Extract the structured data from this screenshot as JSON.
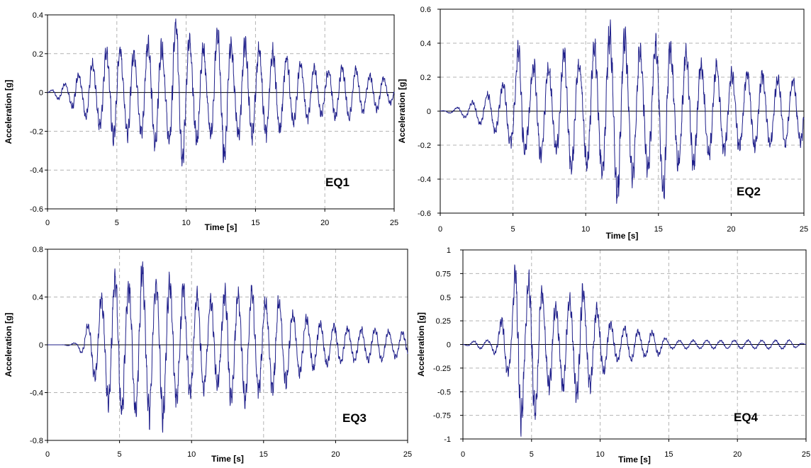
{
  "colors": {
    "trace": "#1f1f8a",
    "grid": "#b3b3b3",
    "axis": "#000000",
    "zero_line": "#000000"
  },
  "chart_data": [
    {
      "type": "line",
      "label": "EQ1",
      "xlabel": "Time [s]",
      "ylabel": "Acceleration [g]",
      "xlim": [
        0,
        25
      ],
      "ylim": [
        -0.6,
        0.4
      ],
      "xticks": [
        0,
        5,
        10,
        15,
        20,
        25
      ],
      "xtick_labels": [
        "0",
        "5",
        "10",
        "15",
        "20",
        "25"
      ],
      "yticks": [
        -0.6,
        -0.4,
        -0.2,
        0,
        0.2,
        0.4
      ],
      "ytick_labels": [
        "-0.6",
        "-0.4",
        "-0.2",
        "0",
        "0.2",
        "0.4"
      ],
      "grid": true,
      "series": [
        {
          "x": [
            0,
            1,
            1.5,
            2,
            2.5,
            3,
            3.5,
            4,
            4.5,
            5,
            5.5,
            6,
            6.5,
            7,
            7.5,
            8,
            8.5,
            9,
            9.5,
            10,
            10.5,
            11,
            11.5,
            12,
            12.5,
            13,
            13.5,
            14,
            15,
            16,
            17,
            18,
            19,
            20,
            21,
            22,
            23,
            24,
            25
          ],
          "y": [
            0,
            0.05,
            -0.05,
            0.12,
            -0.1,
            0.18,
            -0.15,
            0.25,
            -0.25,
            0.3,
            -0.2,
            0.28,
            -0.18,
            0.3,
            -0.3,
            0.32,
            -0.22,
            0.36,
            -0.42,
            0.35,
            -0.25,
            0.33,
            -0.2,
            0.32,
            -0.38,
            0.37,
            -0.2,
            0.3,
            -0.25,
            0.25,
            -0.22,
            0.18,
            -0.15,
            0.12,
            -0.15,
            0.15,
            -0.1,
            0.1,
            0.05
          ]
        }
      ]
    },
    {
      "type": "line",
      "label": "EQ2",
      "xlabel": "Time [s]",
      "ylabel": "Acceleration [g]",
      "xlim": [
        0,
        25
      ],
      "ylim": [
        -0.6,
        0.6
      ],
      "xticks": [
        0,
        5,
        10,
        15,
        20,
        25
      ],
      "xtick_labels": [
        "0",
        "5",
        "10",
        "15",
        "20",
        "25"
      ],
      "yticks": [
        -0.6,
        -0.4,
        -0.2,
        0,
        0.2,
        0.4,
        0.6
      ],
      "ytick_labels": [
        "-0.6",
        "-0.4",
        "-0.2",
        "0",
        "0.2",
        "0.4",
        "0.6"
      ],
      "grid": true,
      "series": [
        {
          "x": [
            0,
            1,
            2,
            3,
            4,
            4.5,
            5,
            5.5,
            6,
            6.5,
            7,
            7.5,
            8,
            8.5,
            9,
            9.5,
            10,
            10.5,
            11,
            11.5,
            12,
            12.5,
            13,
            13.5,
            14,
            14.5,
            15,
            15.5,
            16,
            17,
            18,
            19,
            20,
            21,
            22,
            23,
            24,
            25
          ],
          "y": [
            0,
            0.02,
            -0.05,
            -0.1,
            0.15,
            -0.2,
            0.22,
            -0.48,
            0.2,
            -0.35,
            0.3,
            -0.3,
            0.25,
            -0.4,
            0.4,
            -0.3,
            0.35,
            -0.45,
            0.38,
            -0.5,
            0.59,
            -0.55,
            0.42,
            -0.45,
            0.38,
            -0.42,
            0.48,
            -0.58,
            0.35,
            -0.4,
            0.3,
            -0.3,
            0.25,
            -0.25,
            0.25,
            -0.22,
            0.22,
            0.2
          ]
        }
      ]
    },
    {
      "type": "line",
      "label": "EQ3",
      "xlabel": "Time [s]",
      "ylabel": "Acceleration [g]",
      "xlim": [
        0,
        25
      ],
      "ylim": [
        -0.8,
        0.8
      ],
      "xticks": [
        0,
        5,
        10,
        15,
        20,
        25
      ],
      "xtick_labels": [
        "0",
        "5",
        "10",
        "15",
        "20",
        "25"
      ],
      "yticks": [
        -0.8,
        -0.4,
        0,
        0.4,
        0.8
      ],
      "ytick_labels": [
        "-0.8",
        "-0.4",
        "0",
        "0.4",
        "0.8"
      ],
      "grid": true,
      "series": [
        {
          "x": [
            0,
            1,
            2,
            2.5,
            3,
            3.5,
            4,
            4.5,
            5,
            5.5,
            6,
            6.5,
            7,
            7.5,
            8,
            8.5,
            9,
            9.5,
            10,
            10.5,
            11,
            11.5,
            12,
            12.5,
            13,
            13.5,
            14,
            14.5,
            15,
            16,
            17,
            18,
            19,
            20,
            21,
            22,
            23,
            24,
            25
          ],
          "y": [
            0,
            0,
            0.02,
            -0.1,
            0.25,
            -0.4,
            0.5,
            -0.62,
            0.72,
            -0.55,
            0.6,
            -0.72,
            0.7,
            -0.55,
            0.72,
            -0.6,
            0.5,
            -0.55,
            0.45,
            -0.5,
            0.38,
            -0.45,
            0.35,
            -0.6,
            0.45,
            -0.5,
            0.55,
            -0.45,
            0.4,
            -0.45,
            0.3,
            -0.25,
            0.2,
            -0.18,
            0.15,
            -0.15,
            0.15,
            -0.12,
            -0.12
          ]
        }
      ]
    },
    {
      "type": "line",
      "label": "EQ4",
      "xlabel": "Time [s]",
      "ylabel": "Acceleration [g]",
      "xlim": [
        0,
        25
      ],
      "ylim": [
        -1,
        1
      ],
      "xticks": [
        0,
        5,
        10,
        15,
        20,
        25
      ],
      "xtick_labels": [
        "0",
        "5",
        "10",
        "15",
        "20",
        "25"
      ],
      "yticks": [
        -1,
        -0.75,
        -0.5,
        -0.25,
        0,
        0.25,
        0.5,
        0.75,
        1
      ],
      "ytick_labels": [
        "-1",
        "-0.75",
        "-0.5",
        "-0.25",
        "0",
        "0.25",
        "0.5",
        "0.75",
        "1"
      ],
      "grid": true,
      "series": [
        {
          "x": [
            0,
            1,
            2,
            2.5,
            3,
            3.5,
            3.8,
            4.2,
            4.6,
            5,
            5.4,
            6,
            6.5,
            7,
            7.5,
            8,
            8.5,
            9,
            9.5,
            10,
            10.5,
            11,
            12,
            13,
            14,
            15,
            16,
            17,
            18,
            19,
            20,
            21,
            22,
            23,
            24,
            25
          ],
          "y": [
            0,
            0.05,
            0.05,
            -0.15,
            0.4,
            -0.3,
            0.95,
            -1,
            0.6,
            -0.95,
            0.8,
            -0.5,
            0.55,
            -0.4,
            0.6,
            -0.5,
            0.75,
            -0.55,
            0.45,
            -0.4,
            0.3,
            -0.2,
            0.2,
            -0.15,
            0.15,
            -0.05,
            0.05,
            -0.05,
            0.05,
            -0.05,
            0.05,
            -0.05,
            0.05,
            -0.05,
            0.05,
            0
          ]
        }
      ]
    }
  ]
}
